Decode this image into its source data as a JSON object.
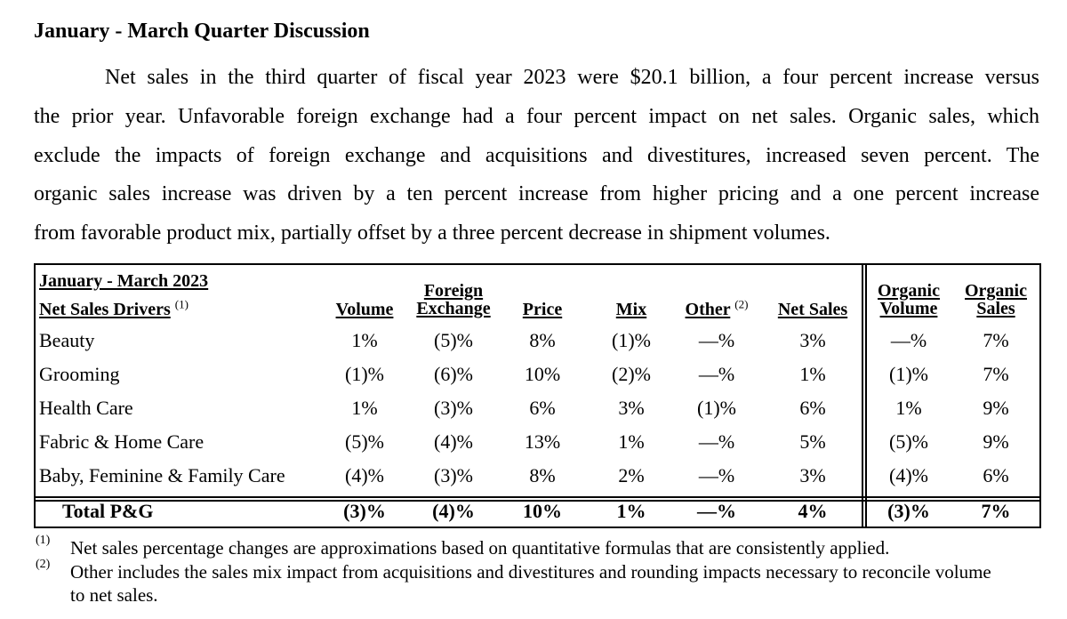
{
  "heading": "January - March Quarter Discussion",
  "paragraph_lines": [
    "Net sales in the third quarter of fiscal year 2023 were $20.1 billion, a four percent increase versus",
    "the prior year. Unfavorable foreign exchange had a four percent impact on net sales. Organic sales, which",
    "exclude the impacts of foreign exchange and acquisitions and divestitures, increased seven percent. The",
    "organic sales increase was driven by a ten percent increase from higher pricing and a one percent increase",
    "from favorable product mix, partially offset by a three percent decrease in shipment volumes."
  ],
  "table": {
    "period_label": "January - March 2023",
    "drivers_label": "Net Sales Drivers",
    "drivers_sup": "(1)",
    "columns": {
      "volume": "Volume",
      "fx_line1": "Foreign",
      "fx_line2": "Exchange",
      "price": "Price",
      "mix": "Mix",
      "other": "Other",
      "other_sup": "(2)",
      "net_sales": "Net Sales",
      "org_vol_line1": "Organic",
      "org_vol_line2": "Volume",
      "org_sales_line1": "Organic",
      "org_sales_line2": "Sales"
    },
    "rows": [
      {
        "segment": "Beauty",
        "volume": "1%",
        "fx": "(5)%",
        "price": "8%",
        "mix": "(1)%",
        "other": "—%",
        "net_sales": "3%",
        "org_volume": "—%",
        "org_sales": "7%"
      },
      {
        "segment": "Grooming",
        "volume": "(1)%",
        "fx": "(6)%",
        "price": "10%",
        "mix": "(2)%",
        "other": "—%",
        "net_sales": "1%",
        "org_volume": "(1)%",
        "org_sales": "7%"
      },
      {
        "segment": "Health Care",
        "volume": "1%",
        "fx": "(3)%",
        "price": "6%",
        "mix": "3%",
        "other": "(1)%",
        "net_sales": "6%",
        "org_volume": "1%",
        "org_sales": "9%"
      },
      {
        "segment": "Fabric & Home Care",
        "volume": "(5)%",
        "fx": "(4)%",
        "price": "13%",
        "mix": "1%",
        "other": "—%",
        "net_sales": "5%",
        "org_volume": "(5)%",
        "org_sales": "9%"
      },
      {
        "segment": "Baby, Feminine & Family Care",
        "volume": "(4)%",
        "fx": "(3)%",
        "price": "8%",
        "mix": "2%",
        "other": "—%",
        "net_sales": "3%",
        "org_volume": "(4)%",
        "org_sales": "6%"
      }
    ],
    "total": {
      "segment": "Total P&G",
      "volume": "(3)%",
      "fx": "(4)%",
      "price": "10%",
      "mix": "1%",
      "other": "—%",
      "net_sales": "4%",
      "org_volume": "(3)%",
      "org_sales": "7%"
    }
  },
  "footnotes": [
    {
      "mark": "(1)",
      "text": "Net sales percentage changes are approximations based on quantitative formulas that are consistently applied."
    },
    {
      "mark": "(2)",
      "text": "Other includes the sales mix impact from acquisitions and divestitures and rounding impacts necessary to reconcile volume",
      "continuation": "to net sales."
    }
  ]
}
